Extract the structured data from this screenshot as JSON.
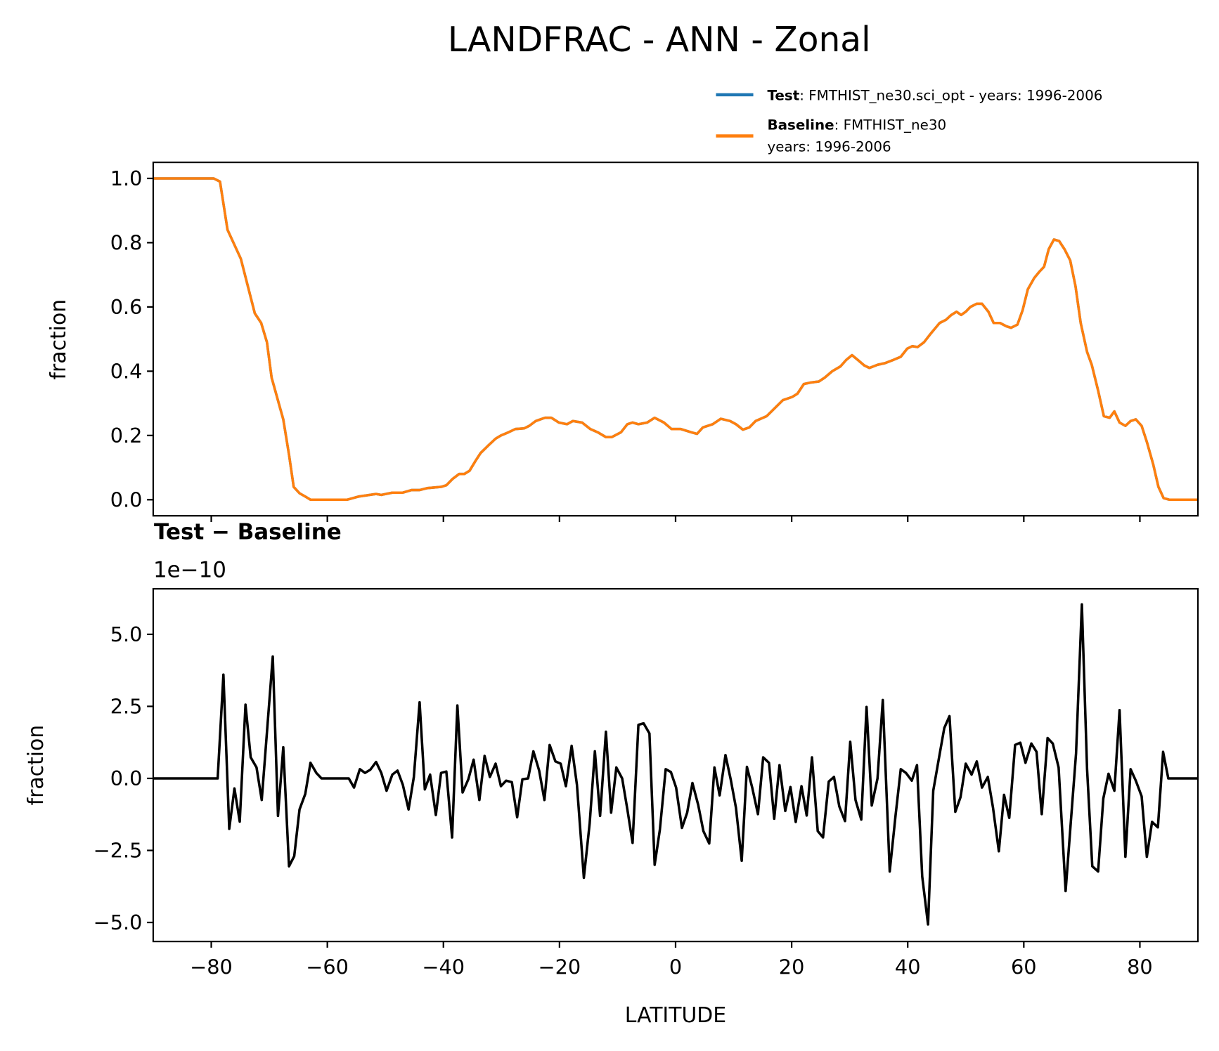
{
  "title": "LANDFRAC - ANN - Zonal",
  "legend": {
    "placement": "top-right above top panel",
    "items": [
      {
        "bold": "Test",
        "text": ": FMTHIST_ne30.sci_opt - years: 1996-2006",
        "text2": "",
        "color": "#1f77b4"
      },
      {
        "bold": "Baseline",
        "text": ": FMTHIST_ne30",
        "text2": "years: 1996-2006",
        "color": "#ff7f0e"
      }
    ]
  },
  "chart_data": [
    {
      "type": "line",
      "panel": "top",
      "xlabel": "",
      "ylabel": "fraction",
      "xlim": [
        -90,
        90
      ],
      "ylim": [
        -0.05,
        1.05
      ],
      "xticks": [
        -80,
        -60,
        -40,
        -20,
        0,
        20,
        40,
        60,
        80
      ],
      "yticks": [
        0.0,
        0.2,
        0.4,
        0.6,
        0.8,
        1.0
      ],
      "ytick_labels": [
        "0.0",
        "0.2",
        "0.4",
        "0.6",
        "0.8",
        "1.0"
      ],
      "series": [
        {
          "name": "Test",
          "color": "#1f77b4",
          "identical_to": "Baseline"
        },
        {
          "name": "Baseline",
          "color": "#ff7f0e",
          "x": [
            -90,
            -79.6,
            -78.5,
            -77.2,
            -74.9,
            -72.5,
            -71.4,
            -70.4,
            -69.6,
            -67.6,
            -66.6,
            -65.8,
            -64.8,
            -63.8,
            -62.9,
            -56.6,
            -54.6,
            -51.6,
            -50.7,
            -48.8,
            -47,
            -45.5,
            -44.1,
            -42.8,
            -40.4,
            -39.5,
            -38.4,
            -37.3,
            -36.4,
            -35.5,
            -34.5,
            -33.6,
            -32.2,
            -31,
            -30.1,
            -28.8,
            -27.6,
            -26.1,
            -25.2,
            -24.1,
            -22.5,
            -21.4,
            -20.1,
            -18.7,
            -17.7,
            -16.1,
            -14.7,
            -13.4,
            -12,
            -11,
            -9.4,
            -8.3,
            -7.4,
            -6.4,
            -4.9,
            -3.6,
            -2,
            -0.7,
            0.9,
            2.7,
            3.7,
            4.7,
            6.4,
            7.8,
            9.4,
            10.4,
            11.6,
            12.7,
            13.8,
            15.7,
            17.1,
            18.5,
            20.1,
            21,
            22.1,
            23.4,
            24.7,
            25.7,
            27,
            28.4,
            29.4,
            30.4,
            31.4,
            32.5,
            33.4,
            34.8,
            36.1,
            37.5,
            38.8,
            39.9,
            40.8,
            41.7,
            42.8,
            44.1,
            45.5,
            46.6,
            47.5,
            48.4,
            49.2,
            50,
            50.8,
            51.9,
            52.8,
            53.9,
            54.8,
            55.9,
            57,
            57.8,
            58.9,
            59.8,
            60.7,
            61.8,
            62.7,
            63.5,
            64.3,
            65.2,
            66.1,
            67,
            68,
            68.9,
            69.8,
            70.9,
            71.7,
            72.8,
            73.8,
            74.8,
            75.6,
            76.5,
            77.5,
            78.4,
            79.3,
            80.3,
            81.2,
            82.3,
            83.2,
            84.1,
            85.1,
            90
          ],
          "values": [
            1,
            1,
            0.99,
            0.84,
            0.75,
            0.58,
            0.55,
            0.49,
            0.38,
            0.25,
            0.14,
            0.04,
            0.02,
            0.01,
            0,
            0,
            0.01,
            0.018,
            0.015,
            0.022,
            0.022,
            0.03,
            0.03,
            0.036,
            0.04,
            0.045,
            0.065,
            0.08,
            0.08,
            0.09,
            0.12,
            0.145,
            0.17,
            0.19,
            0.2,
            0.21,
            0.22,
            0.222,
            0.23,
            0.245,
            0.255,
            0.255,
            0.24,
            0.235,
            0.245,
            0.24,
            0.22,
            0.21,
            0.195,
            0.195,
            0.21,
            0.235,
            0.24,
            0.235,
            0.24,
            0.255,
            0.24,
            0.22,
            0.22,
            0.21,
            0.205,
            0.225,
            0.235,
            0.252,
            0.245,
            0.235,
            0.218,
            0.225,
            0.245,
            0.26,
            0.285,
            0.31,
            0.32,
            0.33,
            0.36,
            0.365,
            0.368,
            0.38,
            0.4,
            0.415,
            0.435,
            0.45,
            0.435,
            0.418,
            0.41,
            0.42,
            0.425,
            0.435,
            0.445,
            0.47,
            0.478,
            0.475,
            0.49,
            0.52,
            0.55,
            0.56,
            0.575,
            0.585,
            0.575,
            0.585,
            0.6,
            0.61,
            0.61,
            0.585,
            0.55,
            0.55,
            0.54,
            0.535,
            0.545,
            0.59,
            0.655,
            0.69,
            0.71,
            0.725,
            0.78,
            0.81,
            0.805,
            0.78,
            0.745,
            0.665,
            0.55,
            0.46,
            0.42,
            0.34,
            0.26,
            0.255,
            0.275,
            0.24,
            0.23,
            0.245,
            0.25,
            0.23,
            0.18,
            0.11,
            0.04,
            0.005,
            0,
            0
          ]
        }
      ]
    },
    {
      "type": "line",
      "panel": "bottom",
      "title": "Test − Baseline",
      "offset_label": "1e−10",
      "xlabel": "LATITUDE",
      "ylabel": "fraction",
      "xlim": [
        -90,
        90
      ],
      "ylim": [
        -5.66,
        6.58
      ],
      "xticks": [
        -80,
        -60,
        -40,
        -20,
        0,
        20,
        40,
        60,
        80
      ],
      "xtick_labels": [
        "−80",
        "−60",
        "−40",
        "−20",
        "0",
        "20",
        "40",
        "60",
        "80"
      ],
      "yticks": [
        -5.0,
        -2.5,
        0.0,
        2.5,
        5.0
      ],
      "ytick_labels": [
        "−5.0",
        "−2.5",
        "0.0",
        "2.5",
        "5.0"
      ],
      "series": [
        {
          "name": "Test - Baseline",
          "color": "#000000",
          "x": [
            -90,
            -78.9,
            -77.9,
            -76.9,
            -76.0,
            -75.1,
            -74.1,
            -73.2,
            -72.2,
            -71.3,
            -69.4,
            -68.5,
            -67.6,
            -66.6,
            -65.7,
            -64.8,
            -63.8,
            -62.9,
            -61.9,
            -61.0,
            -56.3,
            -55.4,
            -54.4,
            -53.5,
            -52.6,
            -51.6,
            -50.7,
            -49.8,
            -48.8,
            -47.9,
            -47.0,
            -46.0,
            -45.1,
            -44.1,
            -43.2,
            -42.3,
            -41.3,
            -40.4,
            -39.5,
            -38.5,
            -37.6,
            -36.7,
            -35.7,
            -34.8,
            -33.8,
            -32.9,
            -32.0,
            -31.0,
            -30.1,
            -29.2,
            -28.2,
            -27.3,
            -26.4,
            -25.4,
            -24.5,
            -23.5,
            -22.6,
            -21.7,
            -20.7,
            -19.8,
            -18.9,
            -17.9,
            -17.0,
            -15.8,
            -14.8,
            -13.9,
            -13.0,
            -12.0,
            -11.1,
            -10.2,
            -9.2,
            -8.3,
            -7.4,
            -6.4,
            -5.5,
            -4.5,
            -3.6,
            -2.7,
            -1.7,
            -0.8,
            0.1,
            1.1,
            2.0,
            2.9,
            3.9,
            4.8,
            5.8,
            6.7,
            7.6,
            8.6,
            9.5,
            10.4,
            11.4,
            12.3,
            13.2,
            14.2,
            15.1,
            16.1,
            17.0,
            17.9,
            18.9,
            19.8,
            20.7,
            21.7,
            22.6,
            23.5,
            24.5,
            25.4,
            26.4,
            27.3,
            28.2,
            29.2,
            30.1,
            31.0,
            32.0,
            32.9,
            33.8,
            34.8,
            35.7,
            36.9,
            37.9,
            38.8,
            39.7,
            40.7,
            41.6,
            42.5,
            43.5,
            44.4,
            45.4,
            46.3,
            47.2,
            48.2,
            49.1,
            50.0,
            51.0,
            51.9,
            52.8,
            53.8,
            54.7,
            55.7,
            56.6,
            57.5,
            58.5,
            59.4,
            60.3,
            61.3,
            62.2,
            63.1,
            64.1,
            65.0,
            66.0,
            67.2,
            68.1,
            69.0,
            70.0,
            70.9,
            71.8,
            72.8,
            73.7,
            74.6,
            75.6,
            76.5,
            77.5,
            78.4,
            79.3,
            80.3,
            81.2,
            82.1,
            83.1,
            84.0,
            84.9,
            90
          ],
          "values": [
            0,
            0,
            3.6,
            -1.75,
            -0.35,
            -1.5,
            2.56,
            0.73,
            0.38,
            -0.75,
            4.23,
            -1.3,
            1.08,
            -3.05,
            -2.7,
            -1.08,
            -0.54,
            0.54,
            0.19,
            0,
            0,
            -0.32,
            0.32,
            0.19,
            0.3,
            0.57,
            0.19,
            -0.43,
            0.13,
            0.27,
            -0.22,
            -1.08,
            0.05,
            2.64,
            -0.38,
            0.13,
            -1.27,
            0.19,
            0.24,
            -2.05,
            2.53,
            -0.49,
            -0.03,
            0.65,
            -0.75,
            0.78,
            0.05,
            0.51,
            -0.27,
            -0.08,
            -0.13,
            -1.35,
            -0.03,
            0,
            0.94,
            0.27,
            -0.75,
            1.16,
            0.59,
            0.51,
            -0.27,
            1.13,
            -0.22,
            -3.45,
            -1.56,
            0.94,
            -1.3,
            1.62,
            -1.19,
            0.38,
            0,
            -1.08,
            -2.24,
            1.86,
            1.91,
            1.56,
            -3.0,
            -1.78,
            0.32,
            0.22,
            -0.32,
            -1.72,
            -1.19,
            -0.16,
            -0.92,
            -1.83,
            -2.26,
            0.38,
            -0.59,
            0.81,
            -0.03,
            -1.02,
            -2.86,
            0.4,
            -0.32,
            -1.24,
            0.73,
            0.54,
            -1.4,
            0.46,
            -1.13,
            -0.3,
            -1.51,
            -0.27,
            -1.29,
            0.73,
            -1.83,
            -2.05,
            -0.11,
            0.05,
            -0.97,
            -1.48,
            1.27,
            -0.75,
            -1.43,
            2.48,
            -0.94,
            0,
            2.72,
            -3.23,
            -1.29,
            0.32,
            0.19,
            -0.08,
            0.46,
            -3.4,
            -5.07,
            -0.43,
            0.73,
            1.75,
            2.16,
            -1.16,
            -0.65,
            0.51,
            0.13,
            0.59,
            -0.32,
            0.05,
            -1.02,
            -2.53,
            -0.57,
            -1.37,
            1.16,
            1.24,
            0.54,
            1.21,
            0.92,
            -1.24,
            1.4,
            1.21,
            0.38,
            -3.91,
            -1.51,
            0.86,
            6.04,
            0.32,
            -3.05,
            -3.23,
            -0.7,
            0.16,
            -0.43,
            2.37,
            -2.72,
            0.32,
            -0.08,
            -0.62,
            -2.72,
            -1.51,
            -1.7,
            0.92,
            0,
            0
          ]
        }
      ]
    }
  ]
}
